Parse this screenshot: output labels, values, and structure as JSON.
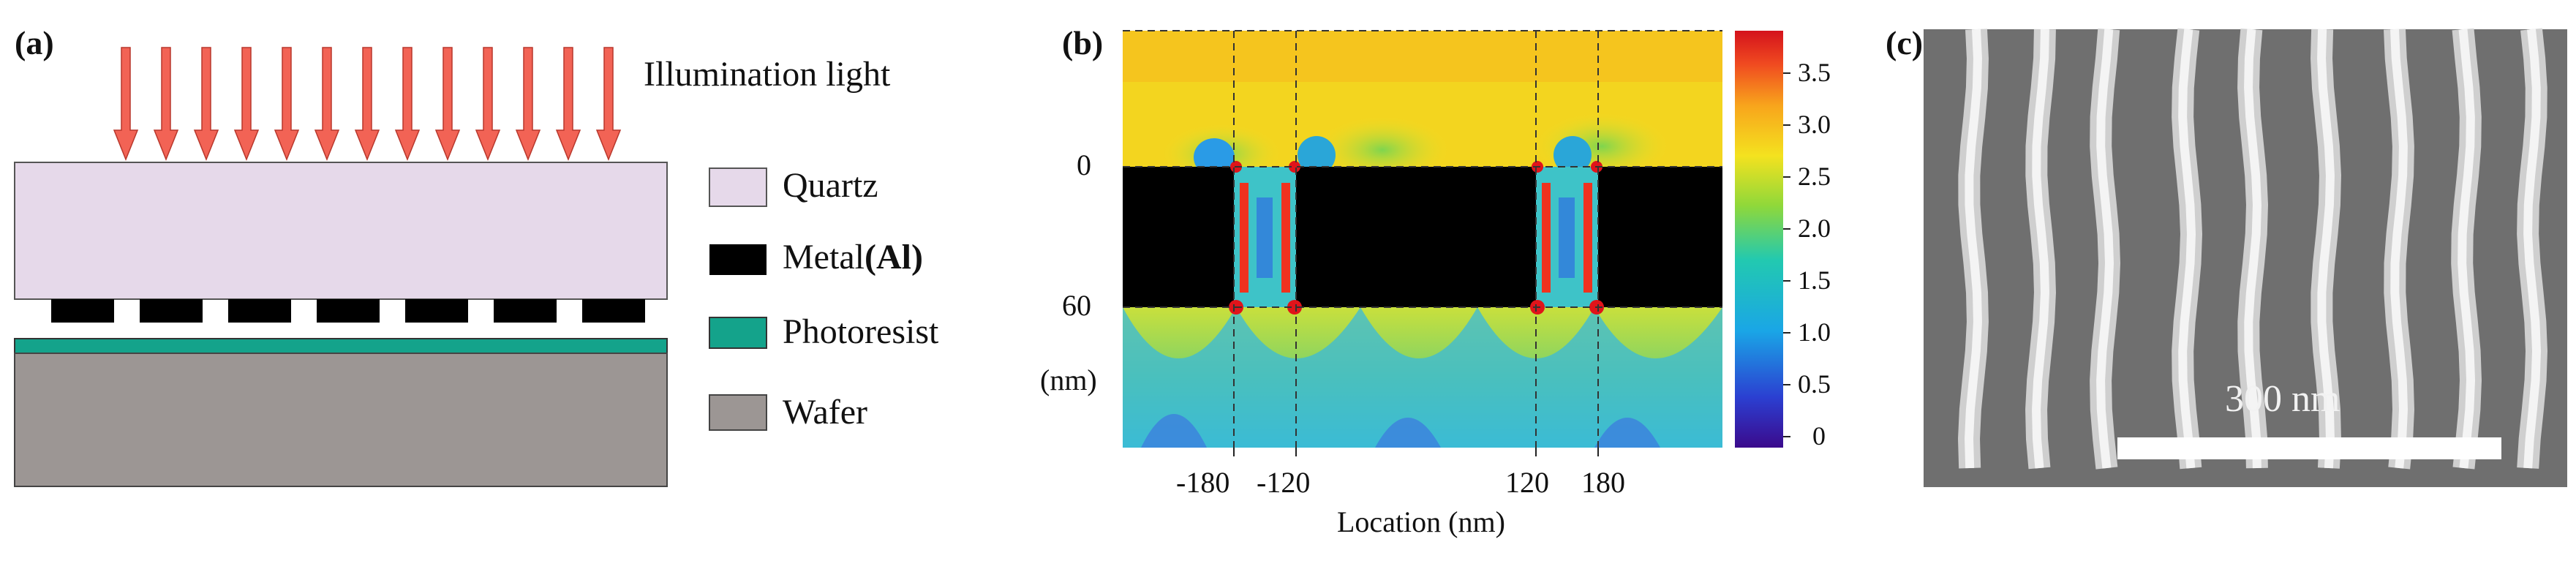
{
  "panels": {
    "a": {
      "tag": "(a)",
      "light_label": "Illumination light",
      "legend": [
        {
          "label": "Quartz",
          "color": "#e6d9ea"
        },
        {
          "label": "Metal",
          "label_suffix": "(Al)",
          "color": "#000000"
        },
        {
          "label": "Photoresist",
          "color": "#14a38b"
        },
        {
          "label": "Wafer",
          "color": "#9c9694"
        }
      ],
      "colors": {
        "arrow": "#f26355",
        "quartz": "#e6d9ea",
        "metal": "#000000",
        "photoresist": "#14a38b",
        "wafer": "#9c9694"
      }
    },
    "b": {
      "tag": "(b)",
      "y_ticks": [
        "0",
        "60",
        "(nm)"
      ],
      "x_ticks": [
        "-180",
        "-120",
        "120",
        "180"
      ],
      "x_label": "Location (nm)",
      "colorbar_ticks": [
        "3.5",
        "3.0",
        "2.5",
        "2.0",
        "1.5",
        "1.0",
        "0.5",
        "0"
      ]
    },
    "c": {
      "tag": "(c)",
      "scale_label": "300 nm"
    }
  }
}
